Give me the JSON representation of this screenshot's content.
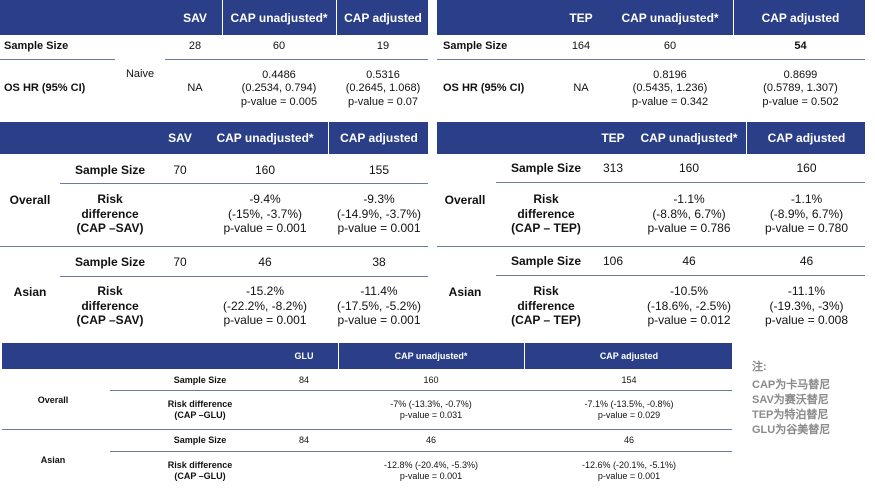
{
  "t1": {
    "headers": [
      "SAV",
      "CAP unadjusted*",
      "CAP adjusted"
    ],
    "group": "Naive",
    "rows": [
      {
        "label": "Sample Size",
        "values": [
          "28",
          "60",
          "19"
        ]
      },
      {
        "label": "OS HR (95% CI)",
        "values": [
          "NA",
          "0.4486\n(0.2534, 0.794)\np-value = 0.005",
          "0.5316\n(0.2645, 1.068)\np-value = 0.07"
        ]
      }
    ]
  },
  "t2": {
    "headers": [
      "TEP",
      "CAP unadjusted*",
      "CAP adjusted"
    ],
    "rows": [
      {
        "label": "Sample Size",
        "values": [
          "164",
          "60",
          "54"
        ]
      },
      {
        "label": "OS HR (95% CI)",
        "values": [
          "NA",
          "0.8196\n(0.5435, 1.236)\np-value = 0.342",
          "0.8699\n(0.5789, 1.307)\np-value = 0.502"
        ]
      }
    ]
  },
  "t3": {
    "headers": [
      "SAV",
      "CAP unadjusted*",
      "CAP adjusted"
    ],
    "groups": [
      {
        "name": "Overall",
        "rows": [
          {
            "label": "Sample Size",
            "values": [
              "70",
              "160",
              "155"
            ]
          },
          {
            "label": "Risk\ndifference\n(CAP –SAV)",
            "values": [
              "",
              "-9.4%\n(-15%, -3.7%)\np-value = 0.001",
              "-9.3%\n(-14.9%, -3.7%)\np-value = 0.001"
            ]
          }
        ]
      },
      {
        "name": "Asian",
        "rows": [
          {
            "label": "Sample Size",
            "values": [
              "70",
              "46",
              "38"
            ]
          },
          {
            "label": "Risk\ndifference\n(CAP –SAV)",
            "values": [
              "",
              "-15.2%\n(-22.2%, -8.2%)\np-value = 0.001",
              "-11.4%\n(-17.5%, -5.2%)\np-value = 0.001"
            ]
          }
        ]
      }
    ]
  },
  "t4": {
    "headers": [
      "TEP",
      "CAP unadjusted*",
      "CAP adjusted"
    ],
    "groups": [
      {
        "name": "Overall",
        "rows": [
          {
            "label": "Sample Size",
            "values": [
              "313",
              "160",
              "160"
            ]
          },
          {
            "label": "Risk\ndifference\n(CAP – TEP)",
            "values": [
              "",
              "-1.1%\n(-8.8%, 6.7%)\np-value = 0.786",
              "-1.1%\n(-8.9%, 6.7%)\np-value = 0.780"
            ]
          }
        ]
      },
      {
        "name": "Asian",
        "rows": [
          {
            "label": "Sample Size",
            "values": [
              "106",
              "46",
              "46"
            ]
          },
          {
            "label": "Risk\ndifference\n(CAP – TEP)",
            "values": [
              "",
              "-10.5%\n(-18.6%, -2.5%)\np-value = 0.012",
              "-11.1%\n(-19.3%, -3%)\np-value = 0.008"
            ]
          }
        ]
      }
    ]
  },
  "t5": {
    "headers": [
      "GLU",
      "CAP unadjusted*",
      "CAP adjusted"
    ],
    "groups": [
      {
        "name": "Overall",
        "rows": [
          {
            "label": "Sample Size",
            "values": [
              "84",
              "160",
              "154"
            ]
          },
          {
            "label": "Risk difference\n(CAP –GLU)",
            "values": [
              "",
              "-7% (-13.3%, -0.7%)\np-value = 0.031",
              "-7.1% (-13.5%, -0.8%)\np-value = 0.029"
            ]
          }
        ]
      },
      {
        "name": "Asian",
        "rows": [
          {
            "label": "Sample Size",
            "values": [
              "84",
              "46",
              "46"
            ]
          },
          {
            "label": "Risk difference\n(CAP –GLU)",
            "values": [
              "",
              "-12.8% (-20.4%, -5.3%)\np-value = 0.001",
              "-12.6% (-20.1%, -5.1%)\np-value = 0.001"
            ]
          }
        ]
      }
    ]
  },
  "note": {
    "title": "注:",
    "lines": [
      "CAP为卡马替尼",
      "SAV为赛沃替尼",
      "TEP为特泊替尼",
      "GLU为谷美替尼"
    ]
  },
  "colors": {
    "header": "#2b3f88",
    "note": "#8a8a8a"
  }
}
